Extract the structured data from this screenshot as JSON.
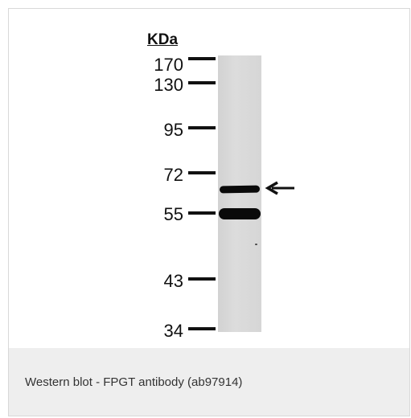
{
  "blot": {
    "unit_label": "KDa",
    "markers": [
      "170",
      "130",
      "95",
      "72",
      "55",
      "43",
      "34"
    ]
  },
  "caption": {
    "text": "Western blot - FPGT antibody (ab97914)"
  },
  "icons": {
    "arrow": "arrow-left-icon"
  }
}
